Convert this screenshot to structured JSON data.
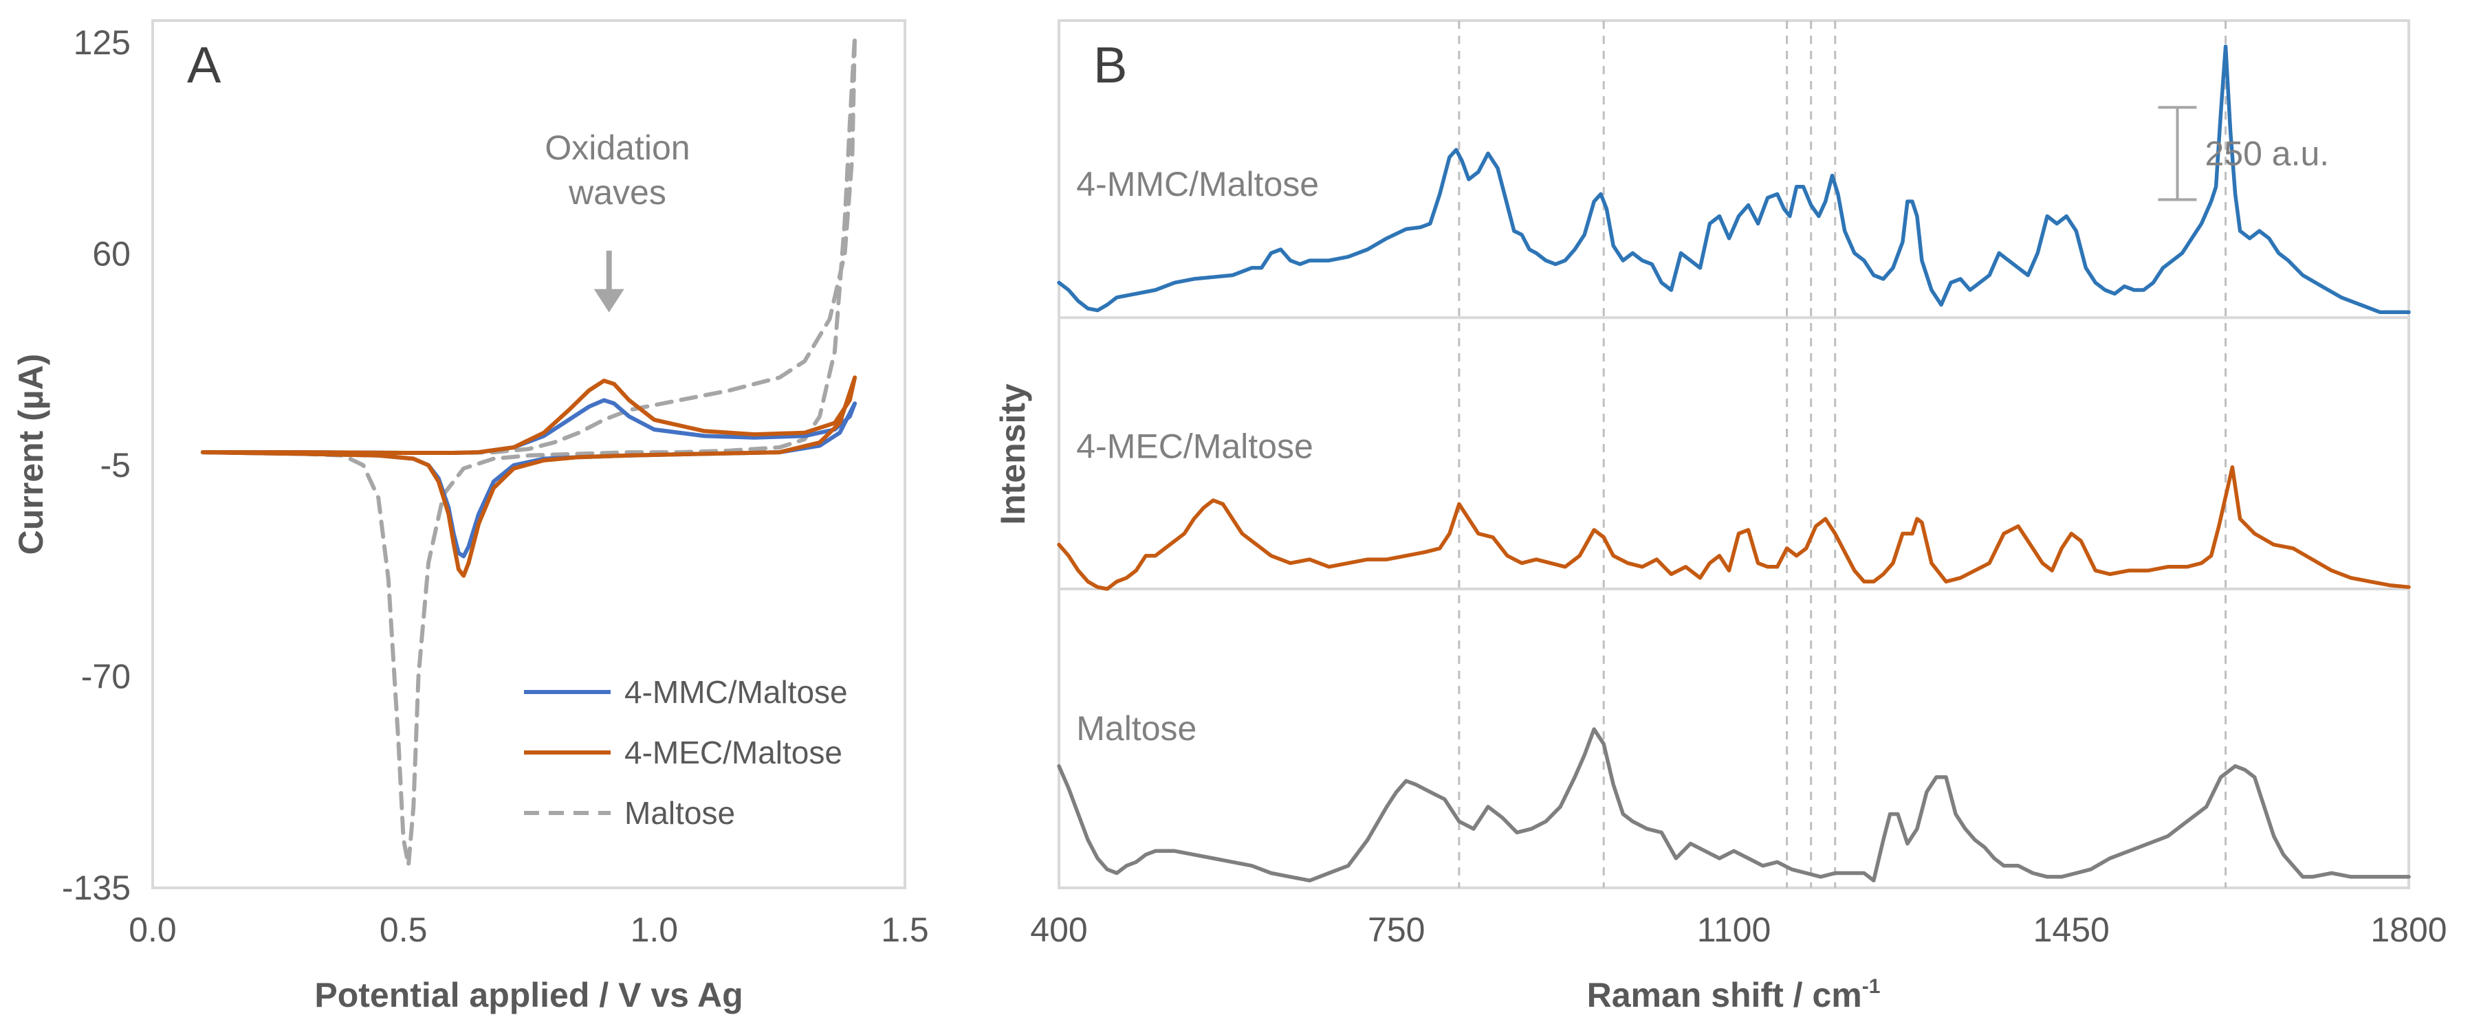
{
  "chart_data": [
    {
      "panel": "A",
      "type": "line",
      "xlabel": "Potential applied / V vs Ag",
      "ylabel": "Current (µA)",
      "xlim": [
        0.0,
        1.5
      ],
      "ylim": [
        -135,
        125
      ],
      "xticks": [
        "0.0",
        "0.5",
        "1.0",
        "1.5"
      ],
      "yticks": [
        "125",
        "60",
        "-5",
        "-70",
        "-135"
      ],
      "xtick_values": [
        0.0,
        0.5,
        1.0,
        1.5
      ],
      "ytick_values": [
        125,
        60,
        -5,
        -70,
        -135
      ],
      "annotation": [
        "Oxidation",
        "waves"
      ],
      "annotation_arrow": {
        "x": 0.91,
        "y_from": 61,
        "y_to": 42
      },
      "series": [
        {
          "name": "4-MMC/Maltose",
          "color": "#4472C4",
          "dash": false,
          "x": [
            0.1,
            0.3,
            0.45,
            0.52,
            0.55,
            0.57,
            0.59,
            0.6,
            0.61,
            0.62,
            0.63,
            0.65,
            0.68,
            0.72,
            0.78,
            0.85,
            0.95,
            1.1,
            1.25,
            1.33,
            1.37,
            1.4,
            1.39,
            1.36,
            1.3,
            1.2,
            1.1,
            1.0,
            0.95,
            0.92,
            0.9,
            0.87,
            0.83,
            0.78,
            0.72,
            0.65,
            0.6,
            0.5,
            0.3,
            0.1
          ],
          "y": [
            -1,
            -1.5,
            -2,
            -3,
            -5,
            -9,
            -18,
            -26,
            -32,
            -33,
            -30,
            -20,
            -10,
            -5,
            -3,
            -2.5,
            -2,
            -1.5,
            -1,
            1,
            5,
            14,
            10,
            6,
            4,
            3.5,
            4,
            6,
            10,
            14,
            15,
            13,
            9,
            4,
            0.5,
            -1,
            -1.2,
            -1.2,
            -1,
            -1
          ]
        },
        {
          "name": "4-MEC/Maltose",
          "color": "#C55A11",
          "dash": false,
          "x": [
            0.1,
            0.3,
            0.45,
            0.52,
            0.55,
            0.57,
            0.59,
            0.6,
            0.61,
            0.62,
            0.63,
            0.65,
            0.68,
            0.72,
            0.78,
            0.85,
            0.95,
            1.1,
            1.25,
            1.33,
            1.37,
            1.4,
            1.39,
            1.36,
            1.3,
            1.2,
            1.1,
            1.0,
            0.95,
            0.92,
            0.9,
            0.87,
            0.83,
            0.78,
            0.72,
            0.65,
            0.6,
            0.5,
            0.3,
            0.1
          ],
          "y": [
            -1,
            -1.5,
            -2,
            -3,
            -5,
            -10,
            -20,
            -29,
            -37,
            -39,
            -35,
            -23,
            -12,
            -6,
            -3.5,
            -2.5,
            -2,
            -1.5,
            -1,
            2,
            8,
            22,
            15,
            8,
            5,
            4.5,
            5.5,
            9,
            15,
            20,
            21,
            18,
            12,
            5,
            0.5,
            -1,
            -1.2,
            -1.2,
            -1,
            -1
          ]
        },
        {
          "name": "Maltose",
          "color": "#A6A6A6",
          "dash": true,
          "x": [
            0.1,
            0.3,
            0.38,
            0.42,
            0.45,
            0.47,
            0.49,
            0.5,
            0.51,
            0.52,
            0.53,
            0.55,
            0.58,
            0.62,
            0.68,
            0.75,
            0.85,
            0.95,
            1.05,
            1.15,
            1.25,
            1.3,
            1.33,
            1.36,
            1.38,
            1.39,
            1.4,
            1.395,
            1.38,
            1.35,
            1.3,
            1.25,
            1.15,
            1.05,
            0.95,
            0.9,
            0.85,
            0.8,
            0.75,
            0.68,
            0.6,
            0.5,
            0.3,
            0.1
          ],
          "y": [
            -1,
            -1.5,
            -2,
            -5,
            -15,
            -40,
            -90,
            -120,
            -128,
            -110,
            -70,
            -35,
            -14,
            -6,
            -3,
            -2,
            -1.5,
            -1,
            -1,
            -0.5,
            0.5,
            3,
            10,
            30,
            70,
            100,
            127,
            90,
            60,
            40,
            27,
            22,
            18,
            15,
            12,
            9,
            5,
            2,
            0,
            -1,
            -1.2,
            -1.2,
            -1,
            -1
          ]
        }
      ]
    },
    {
      "panel": "B",
      "type": "line",
      "xlabel": "Raman shift / cm",
      "xlabel_sup": "-1",
      "ylabel": "Intensity",
      "xlim": [
        400,
        1800
      ],
      "xticks": [
        "400",
        "750",
        "1100",
        "1450",
        "1800"
      ],
      "xtick_values": [
        400,
        750,
        1100,
        1450,
        1800
      ],
      "ylim": [
        0,
        2350
      ],
      "scale_bar": {
        "label": "250 a.u.",
        "x": 1560,
        "value": 250,
        "y_top": 2115
      },
      "guide_lines": [
        815,
        965,
        1155,
        1180,
        1205,
        1610
      ],
      "baselines": [
        1545,
        810
      ],
      "series": [
        {
          "name": "4-MMC/Maltose",
          "color": "#2E75B6",
          "label": "4-MMC/Maltose",
          "label_pos": {
            "x": 418,
            "y": 1875
          },
          "x": [
            400,
            410,
            420,
            430,
            440,
            450,
            460,
            480,
            500,
            520,
            540,
            560,
            580,
            600,
            610,
            620,
            630,
            640,
            650,
            660,
            680,
            700,
            720,
            740,
            760,
            775,
            785,
            795,
            805,
            812,
            818,
            825,
            835,
            845,
            855,
            865,
            872,
            880,
            888,
            895,
            905,
            915,
            925,
            935,
            945,
            955,
            962,
            968,
            975,
            985,
            995,
            1005,
            1015,
            1025,
            1035,
            1045,
            1055,
            1065,
            1075,
            1085,
            1095,
            1105,
            1115,
            1125,
            1135,
            1145,
            1152,
            1158,
            1165,
            1172,
            1180,
            1188,
            1195,
            1202,
            1208,
            1215,
            1225,
            1235,
            1245,
            1255,
            1265,
            1275,
            1280,
            1285,
            1290,
            1295,
            1305,
            1315,
            1325,
            1335,
            1345,
            1355,
            1365,
            1375,
            1385,
            1395,
            1405,
            1415,
            1425,
            1435,
            1445,
            1455,
            1465,
            1475,
            1485,
            1495,
            1505,
            1515,
            1525,
            1535,
            1545,
            1555,
            1565,
            1575,
            1585,
            1595,
            1600,
            1605,
            1610,
            1615,
            1620,
            1625,
            1635,
            1645,
            1655,
            1665,
            1675,
            1690,
            1710,
            1730,
            1750,
            1770,
            1790,
            1800
          ],
          "y": [
            1640,
            1620,
            1590,
            1570,
            1565,
            1580,
            1600,
            1610,
            1620,
            1640,
            1650,
            1655,
            1660,
            1680,
            1680,
            1720,
            1730,
            1700,
            1690,
            1700,
            1700,
            1710,
            1730,
            1760,
            1785,
            1790,
            1800,
            1880,
            1980,
            2000,
            1970,
            1920,
            1940,
            1990,
            1950,
            1850,
            1780,
            1770,
            1730,
            1720,
            1700,
            1690,
            1700,
            1730,
            1770,
            1860,
            1880,
            1840,
            1740,
            1700,
            1720,
            1700,
            1690,
            1640,
            1620,
            1720,
            1700,
            1680,
            1800,
            1820,
            1760,
            1820,
            1850,
            1800,
            1870,
            1880,
            1840,
            1820,
            1900,
            1900,
            1850,
            1820,
            1860,
            1930,
            1880,
            1780,
            1720,
            1700,
            1660,
            1650,
            1680,
            1750,
            1860,
            1860,
            1820,
            1700,
            1620,
            1580,
            1640,
            1650,
            1620,
            1640,
            1660,
            1720,
            1700,
            1680,
            1660,
            1720,
            1820,
            1800,
            1820,
            1780,
            1680,
            1640,
            1620,
            1610,
            1630,
            1620,
            1620,
            1640,
            1680,
            1700,
            1720,
            1760,
            1800,
            1860,
            1900,
            2100,
            2280,
            2050,
            1880,
            1780,
            1760,
            1780,
            1760,
            1720,
            1700,
            1660,
            1630,
            1600,
            1580,
            1560,
            1560,
            1560
          ]
        },
        {
          "name": "4-MEC/Maltose",
          "color": "#C55A11",
          "label": "4-MEC/Maltose",
          "label_pos": {
            "x": 418,
            "y": 1165
          },
          "x": [
            400,
            410,
            420,
            430,
            440,
            450,
            460,
            470,
            480,
            490,
            500,
            510,
            520,
            530,
            540,
            550,
            560,
            570,
            580,
            590,
            600,
            610,
            620,
            640,
            660,
            680,
            700,
            720,
            740,
            760,
            780,
            795,
            805,
            815,
            825,
            835,
            850,
            865,
            880,
            895,
            910,
            925,
            940,
            955,
            965,
            975,
            990,
            1005,
            1020,
            1035,
            1050,
            1065,
            1075,
            1085,
            1095,
            1105,
            1115,
            1125,
            1135,
            1145,
            1155,
            1165,
            1175,
            1185,
            1195,
            1205,
            1215,
            1225,
            1235,
            1245,
            1255,
            1265,
            1275,
            1285,
            1290,
            1295,
            1305,
            1320,
            1335,
            1350,
            1365,
            1380,
            1395,
            1410,
            1420,
            1430,
            1440,
            1450,
            1460,
            1475,
            1490,
            1510,
            1530,
            1550,
            1570,
            1585,
            1595,
            1603,
            1610,
            1617,
            1625,
            1640,
            1660,
            1680,
            1700,
            1720,
            1740,
            1760,
            1780,
            1800
          ],
          "y": [
            930,
            900,
            860,
            830,
            815,
            810,
            830,
            840,
            860,
            900,
            900,
            920,
            940,
            960,
            1000,
            1030,
            1050,
            1040,
            1000,
            960,
            940,
            920,
            900,
            880,
            890,
            870,
            880,
            890,
            890,
            900,
            910,
            920,
            960,
            1040,
            1000,
            960,
            950,
            900,
            880,
            890,
            880,
            870,
            900,
            970,
            950,
            900,
            880,
            870,
            890,
            850,
            870,
            840,
            880,
            900,
            860,
            960,
            970,
            880,
            870,
            870,
            920,
            900,
            920,
            980,
            1000,
            960,
            910,
            860,
            830,
            830,
            850,
            880,
            960,
            960,
            1000,
            990,
            880,
            830,
            840,
            860,
            880,
            960,
            980,
            920,
            880,
            860,
            920,
            960,
            940,
            860,
            850,
            860,
            860,
            870,
            870,
            880,
            900,
            980,
            1060,
            1140,
            1000,
            960,
            930,
            920,
            890,
            860,
            840,
            830,
            820,
            815
          ]
        },
        {
          "name": "Maltose",
          "color": "#7F7F7F",
          "label": "Maltose",
          "label_pos": {
            "x": 418,
            "y": 400
          },
          "x": [
            400,
            410,
            420,
            430,
            440,
            450,
            460,
            470,
            480,
            490,
            500,
            520,
            540,
            560,
            580,
            600,
            620,
            640,
            660,
            680,
            700,
            720,
            740,
            750,
            760,
            770,
            785,
            800,
            815,
            830,
            845,
            860,
            875,
            890,
            905,
            920,
            935,
            945,
            955,
            965,
            975,
            985,
            995,
            1010,
            1025,
            1040,
            1055,
            1070,
            1085,
            1100,
            1115,
            1130,
            1145,
            1160,
            1175,
            1190,
            1205,
            1220,
            1235,
            1245,
            1255,
            1262,
            1270,
            1280,
            1290,
            1300,
            1310,
            1320,
            1330,
            1340,
            1350,
            1360,
            1370,
            1380,
            1395,
            1410,
            1425,
            1440,
            1455,
            1470,
            1490,
            1510,
            1530,
            1550,
            1570,
            1590,
            1605,
            1620,
            1630,
            1640,
            1650,
            1660,
            1670,
            1680,
            1690,
            1700,
            1720,
            1740,
            1760,
            1780,
            1800
          ],
          "y": [
            330,
            270,
            200,
            130,
            80,
            50,
            40,
            60,
            70,
            90,
            100,
            100,
            90,
            80,
            70,
            60,
            40,
            30,
            20,
            40,
            60,
            130,
            220,
            260,
            290,
            280,
            260,
            240,
            180,
            160,
            220,
            190,
            150,
            160,
            180,
            220,
            300,
            360,
            430,
            390,
            280,
            200,
            180,
            160,
            150,
            80,
            120,
            100,
            80,
            100,
            80,
            60,
            70,
            50,
            40,
            30,
            40,
            40,
            40,
            20,
            130,
            200,
            200,
            120,
            160,
            260,
            300,
            300,
            200,
            160,
            130,
            110,
            80,
            60,
            60,
            40,
            30,
            30,
            40,
            50,
            80,
            100,
            120,
            140,
            180,
            220,
            300,
            330,
            320,
            300,
            220,
            140,
            90,
            60,
            30,
            30,
            40,
            30,
            30,
            30,
            30
          ]
        }
      ]
    }
  ]
}
